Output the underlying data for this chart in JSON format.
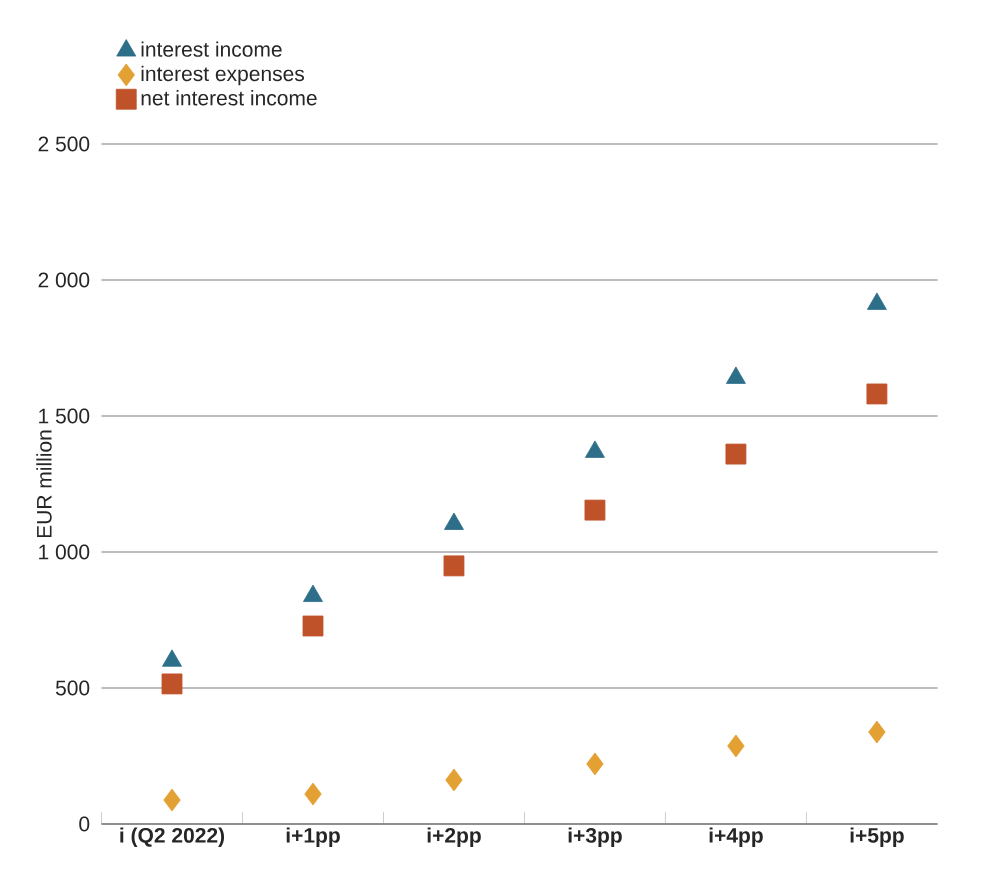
{
  "chart_data": {
    "type": "scatter",
    "ylabel": "EUR million",
    "categories": [
      "i (Q2 2022)",
      "i+1pp",
      "i+2pp",
      "i+3pp",
      "i+4pp",
      "i+5pp"
    ],
    "series": [
      {
        "name": "interest income",
        "color": "#2d6e89",
        "marker": "triangle",
        "values": [
          600,
          838,
          1103,
          1368,
          1640,
          1912
        ]
      },
      {
        "name": "interest expenses",
        "color": "#e3a033",
        "marker": "diamond",
        "values": [
          88,
          110,
          162,
          221,
          287,
          338
        ]
      },
      {
        "name": "net interest income",
        "color": "#c0522a",
        "marker": "square",
        "values": [
          515,
          728,
          949,
          1154,
          1360,
          1581
        ]
      }
    ],
    "ylim": [
      0,
      2500
    ],
    "yticks": [
      0,
      500,
      {
        "value": 1000,
        "label": "1 000"
      },
      {
        "value": 1500,
        "label": "1 500"
      },
      {
        "value": 2000,
        "label": "2 000"
      },
      {
        "value": 2500,
        "label": "2 500"
      }
    ],
    "grid": "y",
    "legend": "top left"
  }
}
